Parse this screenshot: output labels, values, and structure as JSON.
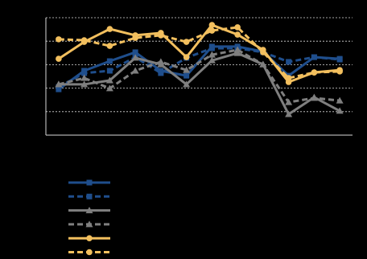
{
  "chart_data": {
    "type": "line",
    "categories": [
      null,
      null,
      null,
      null,
      null,
      null,
      null,
      null,
      null,
      null,
      null,
      null
    ],
    "ylim": [
      0,
      5
    ],
    "yticks": [
      1,
      2,
      3,
      4,
      5
    ],
    "grid": true,
    "series": [
      {
        "color": "#1f4e8c",
        "dash": false,
        "marker": "square",
        "values": [
          1.95,
          2.74,
          3.15,
          3.53,
          2.74,
          2.53,
          3.77,
          3.77,
          3.56,
          2.53,
          3.32,
          3.25
        ]
      },
      {
        "color": "#1f4e8c",
        "dash": true,
        "marker": "square",
        "values": [
          2.05,
          2.64,
          2.74,
          3.32,
          2.64,
          3.29,
          3.7,
          3.7,
          3.53,
          3.12,
          3.32,
          3.22
        ]
      },
      {
        "color": "#7f7f7f",
        "dash": false,
        "marker": "triangle",
        "values": [
          2.16,
          2.16,
          2.33,
          3.29,
          3.01,
          2.16,
          3.18,
          3.49,
          3.01,
          0.89,
          1.61,
          1.03
        ]
      },
      {
        "color": "#7f7f7f",
        "dash": true,
        "marker": "triangle",
        "values": [
          2.16,
          2.43,
          1.99,
          2.74,
          3.12,
          2.77,
          3.42,
          3.63,
          3.01,
          1.4,
          1.58,
          1.47
        ]
      },
      {
        "color": "#f2bf5e",
        "dash": false,
        "marker": "circle",
        "values": [
          3.25,
          3.97,
          4.52,
          4.25,
          4.35,
          3.32,
          4.69,
          4.28,
          3.63,
          2.26,
          2.67,
          2.77
        ]
      },
      {
        "color": "#f2bf5e",
        "dash": true,
        "marker": "circle",
        "values": [
          4.08,
          4.04,
          3.8,
          4.14,
          4.25,
          3.97,
          4.45,
          4.59,
          3.53,
          2.43,
          2.67,
          2.71
        ]
      }
    ]
  }
}
